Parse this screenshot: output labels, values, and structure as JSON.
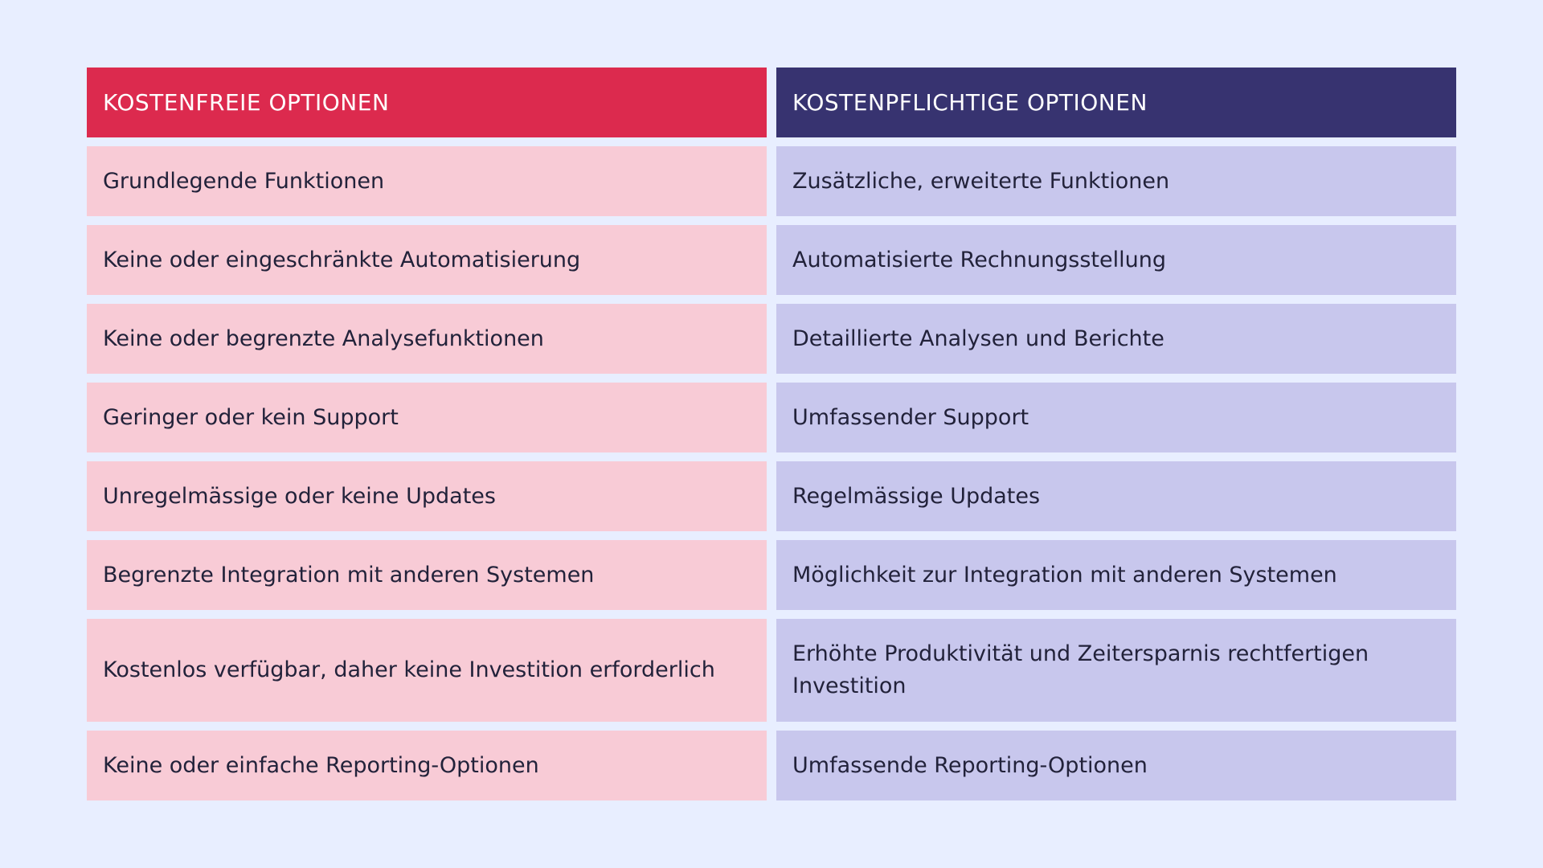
{
  "headers": {
    "free": "KOSTENFREIE OPTIONEN",
    "paid": "KOSTENPFLICHTIGE OPTIONEN"
  },
  "rows": [
    {
      "free": "Grundlegende Funktionen",
      "paid": "Zusätzliche, erweiterte Funktionen"
    },
    {
      "free": "Keine oder eingeschränkte Automatisierung",
      "paid": "Automatisierte Rechnungsstellung"
    },
    {
      "free": "Keine oder begrenzte Analysefunktionen",
      "paid": "Detaillierte Analysen und Berichte"
    },
    {
      "free": "Geringer oder kein Support",
      "paid": "Umfassender Support"
    },
    {
      "free": "Unregelmässige oder keine Updates",
      "paid": "Regelmässige Updates"
    },
    {
      "free": "Begrenzte Integration mit anderen Systemen",
      "paid": "Möglichkeit zur Integration mit anderen Systemen"
    },
    {
      "free": "Kostenlos verfügbar, daher keine Investition erforderlich",
      "paid": "Erhöhte Produktivität und Zeitersparnis rechtfertigen Investition"
    },
    {
      "free": "Keine oder einfache Reporting-Optionen",
      "paid": "Umfassende Reporting-Optionen"
    }
  ],
  "colors": {
    "background": "#e8eeff",
    "free_header": "#dc2a4e",
    "paid_header": "#373370",
    "free_cell": "#f8cbd6",
    "paid_cell": "#c8c7ed"
  }
}
